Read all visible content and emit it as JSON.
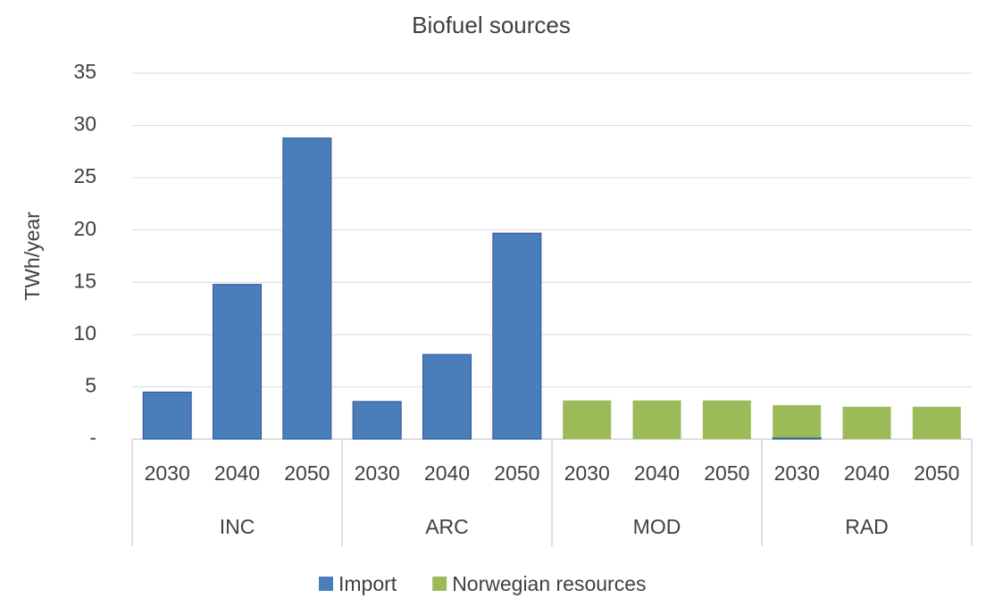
{
  "chart_data": {
    "type": "stacked_bar",
    "title": "Biofuel sources",
    "y_label": "TWh/year",
    "groups": [
      {
        "label": "INC",
        "categories": [
          "2030",
          "2040",
          "2050"
        ]
      },
      {
        "label": "ARC",
        "categories": [
          "2030",
          "2040",
          "2050"
        ]
      },
      {
        "label": "MOD",
        "categories": [
          "2030",
          "2040",
          "2050"
        ]
      },
      {
        "label": "RAD",
        "categories": [
          "2030",
          "2040",
          "2050"
        ]
      }
    ],
    "series": [
      {
        "name": "Import",
        "color": "#4a7ebb",
        "values": [
          4.5,
          14.8,
          28.8,
          3.6,
          8.1,
          19.7,
          0,
          0,
          0,
          0.15,
          0,
          0
        ]
      },
      {
        "name": "Norwegian resources",
        "color": "#9bbb59",
        "values": [
          0,
          0,
          0,
          0,
          0,
          0,
          3.7,
          3.7,
          3.7,
          3.1,
          3.1,
          3.1
        ]
      }
    ],
    "ylim": [
      0,
      35
    ],
    "yticks": [
      {
        "value": 0,
        "label": "-"
      },
      5,
      10,
      15,
      20,
      25,
      30,
      35
    ],
    "grid": true,
    "legend": "bottom"
  }
}
